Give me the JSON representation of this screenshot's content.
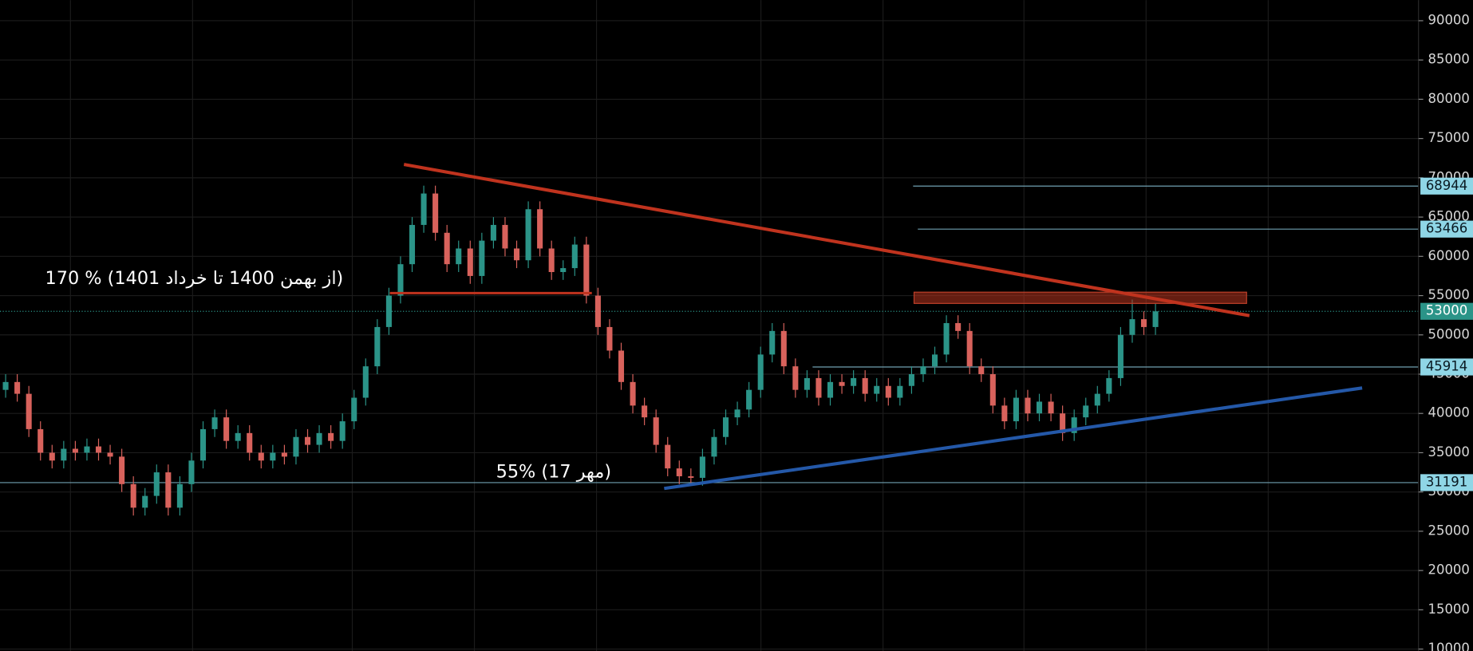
{
  "chart_data": {
    "type": "candlestick",
    "ylim": [
      9760,
      92630
    ],
    "yticks": [
      10000,
      15000,
      20000,
      25000,
      30000,
      35000,
      40000,
      45000,
      50000,
      55000,
      60000,
      65000,
      70000,
      75000,
      80000,
      85000,
      90000
    ],
    "up_color": "#2b9488",
    "down_color": "#d8625c",
    "ohlc": [
      [
        43000,
        45000,
        42000,
        44000
      ],
      [
        44000,
        45000,
        41500,
        42500
      ],
      [
        42500,
        43500,
        37000,
        38000
      ],
      [
        38000,
        39000,
        34000,
        35000
      ],
      [
        35000,
        36000,
        33000,
        34000
      ],
      [
        34000,
        36500,
        33000,
        35500
      ],
      [
        35500,
        36500,
        34000,
        35000
      ],
      [
        35000,
        36800,
        34000,
        35800
      ],
      [
        35800,
        36800,
        34000,
        35000
      ],
      [
        35000,
        36000,
        33500,
        34500
      ],
      [
        34500,
        35500,
        30000,
        31000
      ],
      [
        31000,
        32000,
        27000,
        28000
      ],
      [
        28000,
        30500,
        27000,
        29500
      ],
      [
        29500,
        33500,
        28500,
        32500
      ],
      [
        32500,
        33500,
        27000,
        28000
      ],
      [
        28000,
        32000,
        27000,
        31000
      ],
      [
        31000,
        35000,
        30000,
        34000
      ],
      [
        34000,
        39000,
        33000,
        38000
      ],
      [
        38000,
        40500,
        37000,
        39500
      ],
      [
        39500,
        40500,
        35500,
        36500
      ],
      [
        36500,
        38500,
        35500,
        37500
      ],
      [
        37500,
        38500,
        34000,
        35000
      ],
      [
        35000,
        36000,
        33000,
        34000
      ],
      [
        34000,
        36000,
        33000,
        35000
      ],
      [
        35000,
        36000,
        33500,
        34500
      ],
      [
        34500,
        38000,
        33500,
        37000
      ],
      [
        37000,
        38000,
        35000,
        36000
      ],
      [
        36000,
        38500,
        35000,
        37500
      ],
      [
        37500,
        38500,
        35500,
        36500
      ],
      [
        36500,
        40000,
        35500,
        39000
      ],
      [
        39000,
        43000,
        38000,
        42000
      ],
      [
        42000,
        47000,
        41000,
        46000
      ],
      [
        46000,
        52000,
        45000,
        51000
      ],
      [
        51000,
        56000,
        50000,
        55000
      ],
      [
        55000,
        60000,
        54000,
        59000
      ],
      [
        59000,
        65000,
        58000,
        64000
      ],
      [
        64000,
        69000,
        63000,
        68000
      ],
      [
        68000,
        69000,
        62000,
        63000
      ],
      [
        63000,
        64000,
        58000,
        59000
      ],
      [
        59000,
        62000,
        58000,
        61000
      ],
      [
        61000,
        62000,
        56500,
        57500
      ],
      [
        57500,
        63000,
        56500,
        62000
      ],
      [
        62000,
        65000,
        61000,
        64000
      ],
      [
        64000,
        65000,
        60000,
        61000
      ],
      [
        61000,
        62000,
        58500,
        59500
      ],
      [
        59500,
        67000,
        58500,
        66000
      ],
      [
        66000,
        67000,
        60000,
        61000
      ],
      [
        61000,
        62000,
        57000,
        58000
      ],
      [
        58000,
        59500,
        57000,
        58500
      ],
      [
        58500,
        62500,
        57500,
        61500
      ],
      [
        61500,
        62500,
        54000,
        55000
      ],
      [
        55000,
        56000,
        50000,
        51000
      ],
      [
        51000,
        52000,
        47000,
        48000
      ],
      [
        48000,
        49000,
        43000,
        44000
      ],
      [
        44000,
        45000,
        40000,
        41000
      ],
      [
        41000,
        42000,
        38500,
        39500
      ],
      [
        39500,
        40500,
        35000,
        36000
      ],
      [
        36000,
        37000,
        32000,
        33000
      ],
      [
        33000,
        34000,
        31000,
        32000
      ],
      [
        32000,
        33000,
        30800,
        31800
      ],
      [
        31800,
        35500,
        30800,
        34500
      ],
      [
        34500,
        38000,
        33500,
        37000
      ],
      [
        37000,
        40500,
        36000,
        39500
      ],
      [
        39500,
        41500,
        38500,
        40500
      ],
      [
        40500,
        44000,
        39500,
        43000
      ],
      [
        43000,
        48500,
        42000,
        47500
      ],
      [
        47500,
        51500,
        46500,
        50500
      ],
      [
        50500,
        51500,
        45000,
        46000
      ],
      [
        46000,
        47000,
        42000,
        43000
      ],
      [
        43000,
        45500,
        42000,
        44500
      ],
      [
        44500,
        45500,
        41000,
        42000
      ],
      [
        42000,
        45000,
        41000,
        44000
      ],
      [
        44000,
        45000,
        42500,
        43500
      ],
      [
        43500,
        45500,
        42500,
        44500
      ],
      [
        44500,
        45500,
        41500,
        42500
      ],
      [
        42500,
        44500,
        41500,
        43500
      ],
      [
        43500,
        44500,
        41000,
        42000
      ],
      [
        42000,
        44500,
        41000,
        43500
      ],
      [
        43500,
        46000,
        42500,
        45000
      ],
      [
        45000,
        47000,
        44000,
        46000
      ],
      [
        46000,
        48500,
        45000,
        47500
      ],
      [
        47500,
        52500,
        46500,
        51500
      ],
      [
        51500,
        52500,
        49500,
        50500
      ],
      [
        50500,
        51500,
        45000,
        46000
      ],
      [
        46000,
        47000,
        44000,
        45000
      ],
      [
        45000,
        46000,
        40000,
        41000
      ],
      [
        41000,
        42000,
        38000,
        39000
      ],
      [
        39000,
        43000,
        38000,
        42000
      ],
      [
        42000,
        43000,
        39000,
        40000
      ],
      [
        40000,
        42500,
        39000,
        41500
      ],
      [
        41500,
        42500,
        39000,
        40000
      ],
      [
        40000,
        41000,
        36500,
        37500
      ],
      [
        37500,
        40500,
        36500,
        39500
      ],
      [
        39500,
        42000,
        38500,
        41000
      ],
      [
        41000,
        43500,
        40000,
        42500
      ],
      [
        42500,
        45500,
        41500,
        44500
      ],
      [
        44500,
        51000,
        43500,
        50000
      ],
      [
        50000,
        54500,
        49000,
        52000
      ],
      [
        52000,
        53000,
        50000,
        51000
      ],
      [
        51000,
        54000,
        50000,
        53000
      ]
    ],
    "price_levels": [
      68944,
      63466,
      45914,
      31191
    ],
    "last_price": 53000,
    "annotations": [
      "170 % (از بهمن 1400 تا خرداد 1401)",
      "55% (17 مهر)"
    ]
  }
}
